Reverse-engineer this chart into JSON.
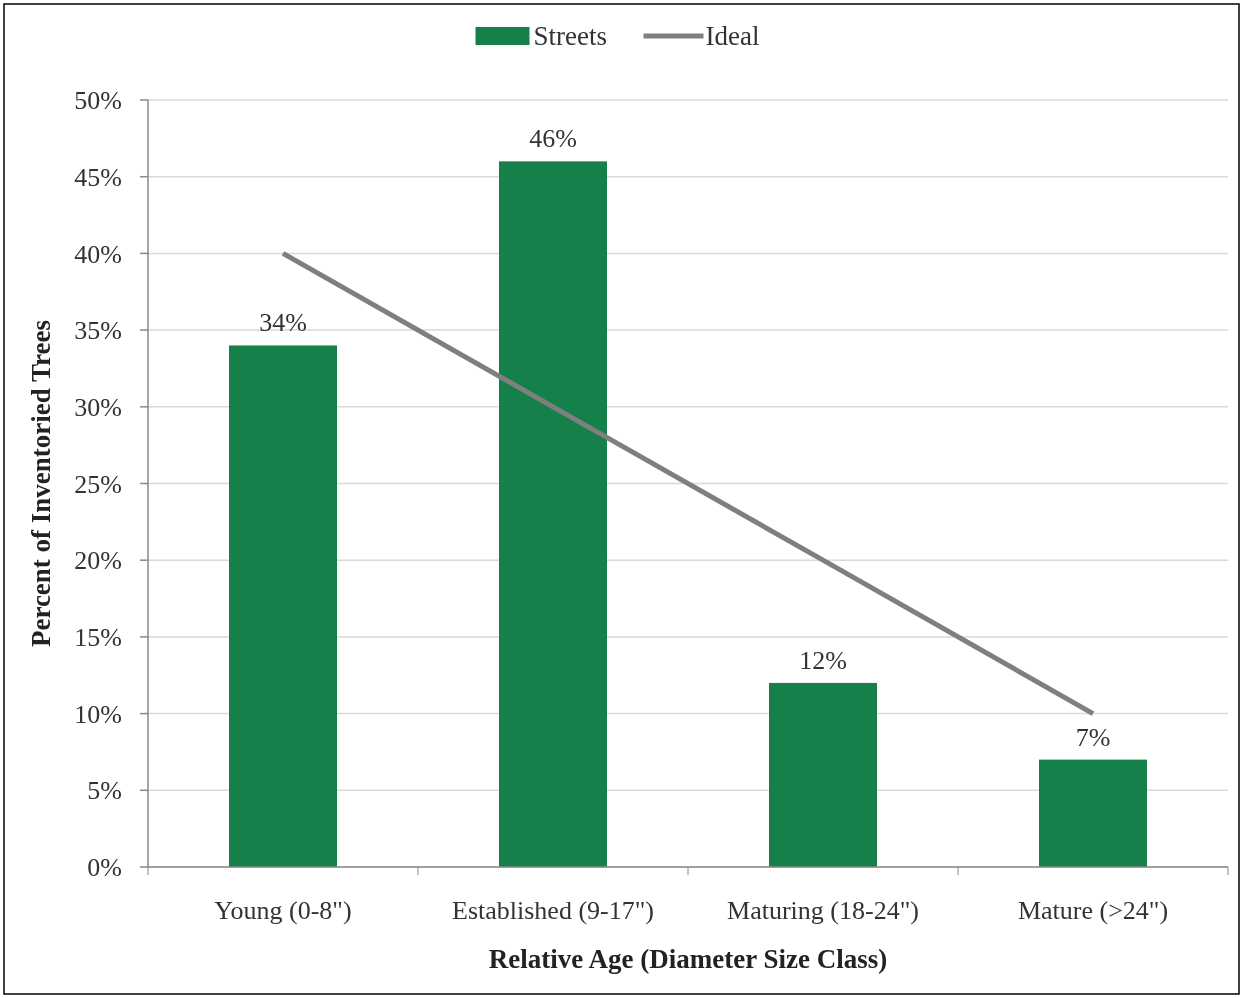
{
  "chart_data": {
    "type": "bar",
    "xlabel": "Relative Age (Diameter Size Class)",
    "ylabel": "Percent of Inventoried Trees",
    "categories": [
      "Young (0-8\")",
      "Established (9-17\")",
      "Maturing (18-24\")",
      "Mature (>24\")"
    ],
    "series": [
      {
        "name": "Streets",
        "color": "#15804a",
        "values": [
          34,
          46,
          12,
          7
        ],
        "value_labels": [
          "34%",
          "46%",
          "12%",
          "7%"
        ]
      },
      {
        "name": "Ideal",
        "type": "line",
        "color": "#7f7f7f",
        "values": [
          40,
          30,
          20,
          10
        ]
      }
    ],
    "ylim": [
      0,
      50
    ],
    "yticks": [
      {
        "value": 0,
        "label": "0%"
      },
      {
        "value": 5,
        "label": "5%"
      },
      {
        "value": 10,
        "label": "10%"
      },
      {
        "value": 15,
        "label": "15%"
      },
      {
        "value": 20,
        "label": "20%"
      },
      {
        "value": 25,
        "label": "25%"
      },
      {
        "value": 30,
        "label": "30%"
      },
      {
        "value": 35,
        "label": "35%"
      },
      {
        "value": 40,
        "label": "40%"
      },
      {
        "value": 45,
        "label": "45%"
      },
      {
        "value": 50,
        "label": "50%"
      }
    ],
    "grid": "y",
    "legend": "top",
    "marker": "none"
  }
}
